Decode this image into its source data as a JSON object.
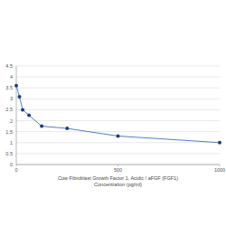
{
  "chart_data": {
    "type": "line",
    "title": "Cow Fibroblast Growth Factor 1, Acidic / aFGF (FGF1)",
    "xlabel": "Concentration (pg/ml)",
    "x": [
      0,
      15.6,
      31.25,
      62.5,
      125,
      250,
      500,
      1000
    ],
    "series": [
      {
        "name": null,
        "color": "#3f6fb5",
        "marker": "circle",
        "values": [
          3.6,
          3.1,
          2.5,
          2.25,
          1.75,
          1.65,
          1.3,
          1.0
        ]
      }
    ],
    "xlim": [
      0,
      1000
    ],
    "xticks": [
      0,
      500,
      1000
    ],
    "ylim": [
      0,
      4.5
    ],
    "yticks": [
      0,
      0.5,
      1,
      1.5,
      2,
      2.5,
      3,
      3.5,
      4,
      4.5
    ],
    "grid": true
  }
}
